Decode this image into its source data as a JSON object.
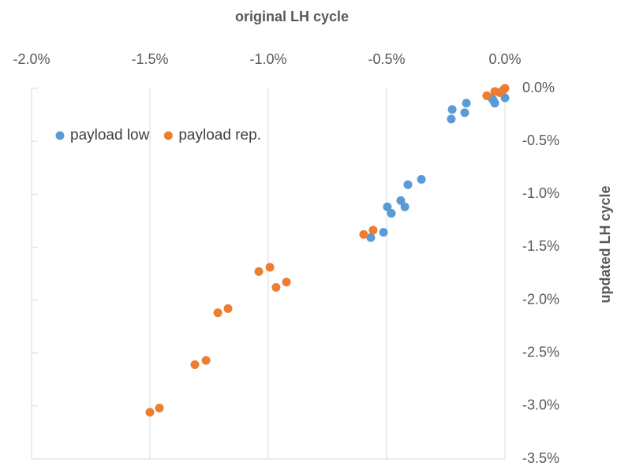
{
  "chart_data": {
    "type": "scatter",
    "x_label": "original LH cycle",
    "y_label": "updated LH cycle",
    "xlim": [
      -2,
      0
    ],
    "ylim": [
      -3.5,
      0
    ],
    "xticks": [
      {
        "value": -2,
        "label": "-2.0%"
      },
      {
        "value": -1.5,
        "label": "-1.5%"
      },
      {
        "value": -1,
        "label": "-1.0%"
      },
      {
        "value": -0.5,
        "label": "-0.5%"
      },
      {
        "value": 0,
        "label": "0.0%"
      }
    ],
    "yticks": [
      {
        "value": 0,
        "label": "0.0%"
      },
      {
        "value": -0.5,
        "label": "-0.5%"
      },
      {
        "value": -1,
        "label": "-1.0%"
      },
      {
        "value": -1.5,
        "label": "-1.5%"
      },
      {
        "value": -2,
        "label": "-2.0%"
      },
      {
        "value": -2.5,
        "label": "-2.5%"
      },
      {
        "value": -3,
        "label": "-3.0%"
      },
      {
        "value": -3.5,
        "label": "-3.5%"
      }
    ],
    "grid": true,
    "legend": "upper left",
    "series": [
      {
        "name": "payload low",
        "color": "#5b9bd5",
        "x": [
          -0.223,
          -0.227,
          -0.163,
          -0.17,
          -0.05,
          -0.043,
          -0.057,
          0,
          -0.353,
          -0.41,
          -0.44,
          -0.423,
          -0.497,
          -0.48,
          -0.513,
          -0.567
        ],
        "values": [
          -0.2,
          -0.29,
          -0.14,
          -0.23,
          -0.11,
          -0.14,
          -0.09,
          -0.09,
          -0.86,
          -0.91,
          -1.06,
          -1.12,
          -1.12,
          -1.18,
          -1.36,
          -1.41
        ]
      },
      {
        "name": "payload rep.",
        "color": "#ed7d31",
        "x": [
          -0.077,
          -0.043,
          -0.023,
          -0.007,
          0,
          -0.597,
          -0.557,
          -1.04,
          -0.993,
          -0.967,
          -0.923,
          -1.213,
          -1.17,
          -1.31,
          -1.263,
          -1.5,
          -1.46
        ],
        "values": [
          -0.07,
          -0.03,
          -0.04,
          -0.015,
          0,
          -1.38,
          -1.34,
          -1.73,
          -1.69,
          -1.88,
          -1.83,
          -2.12,
          -2.08,
          -2.61,
          -2.57,
          -3.06,
          -3.02
        ]
      }
    ]
  }
}
